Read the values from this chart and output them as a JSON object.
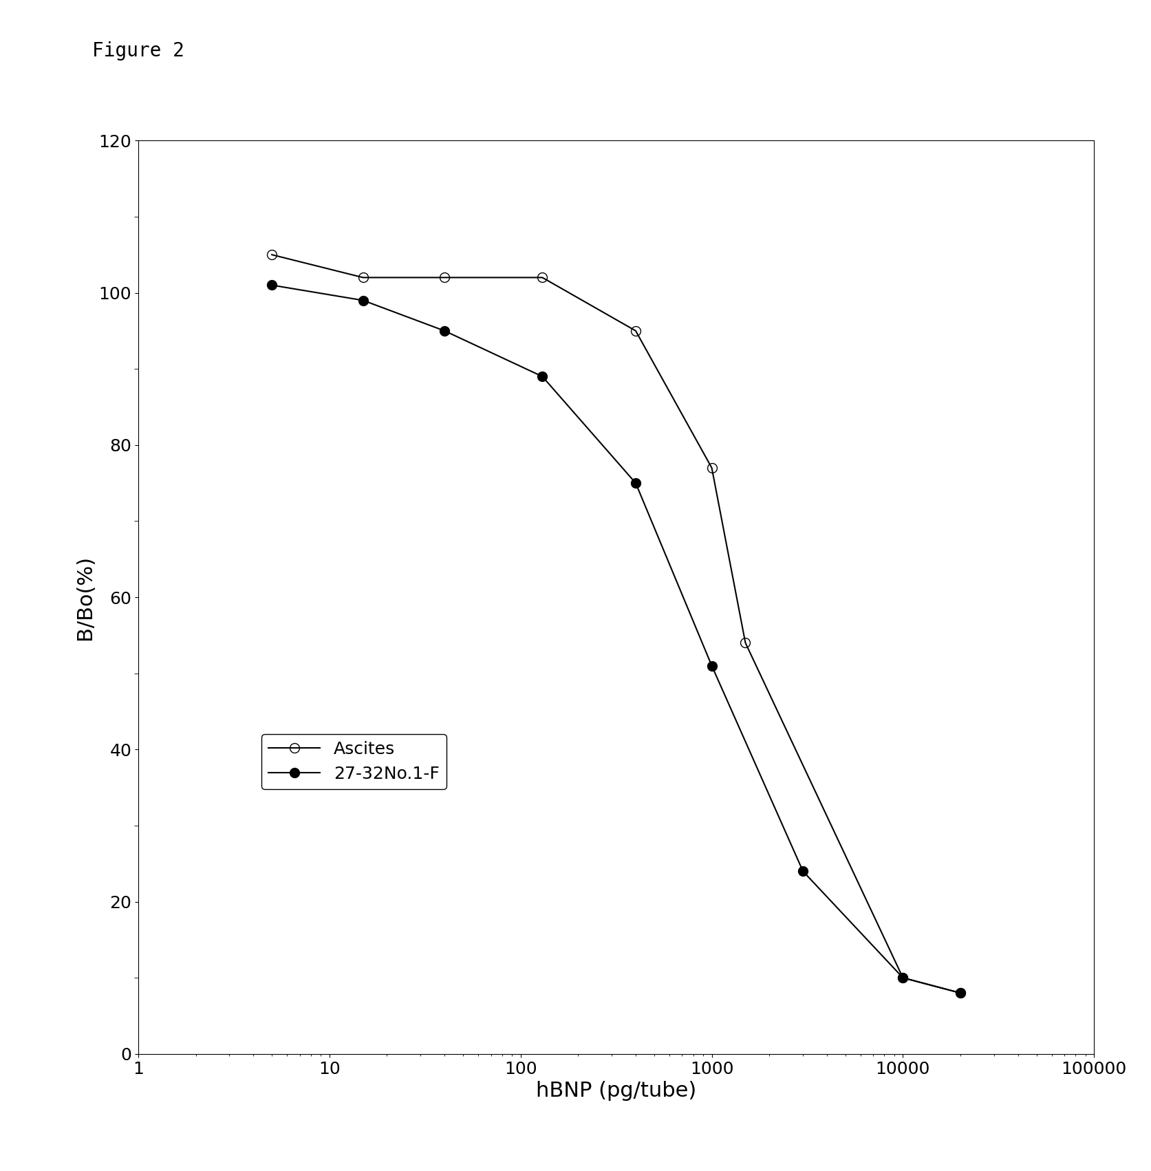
{
  "figure_label": "Figure 2",
  "xlabel": "hBNP (pg/tube)",
  "ylabel": "B/Bo(%)",
  "xlim": [
    1,
    100000
  ],
  "ylim": [
    0,
    120
  ],
  "yticks": [
    0,
    20,
    40,
    60,
    80,
    100,
    120
  ],
  "xtick_labels": [
    "1",
    "10",
    "100",
    "1000",
    "10000",
    "100000"
  ],
  "xtick_values": [
    1,
    10,
    100,
    1000,
    10000,
    100000
  ],
  "series_ascites": {
    "x": [
      5,
      15,
      40,
      130,
      400,
      1000,
      1500,
      10000,
      20000
    ],
    "y": [
      105,
      102,
      102,
      102,
      95,
      77,
      54,
      10,
      8
    ],
    "label": "Ascites",
    "marker": "o",
    "fillstyle": "none",
    "color": "#000000",
    "linewidth": 1.5,
    "markersize": 10
  },
  "series_27_32": {
    "x": [
      5,
      15,
      40,
      130,
      400,
      1000,
      3000,
      10000,
      20000
    ],
    "y": [
      101,
      99,
      95,
      89,
      75,
      51,
      24,
      10,
      8
    ],
    "label": "27-32No.1-F",
    "marker": "o",
    "fillstyle": "full",
    "color": "#000000",
    "linewidth": 1.5,
    "markersize": 10
  },
  "background_color": "#ffffff",
  "figure_label_fontsize": 20,
  "axis_fontsize": 22,
  "tick_fontsize": 18,
  "legend_fontsize": 18
}
